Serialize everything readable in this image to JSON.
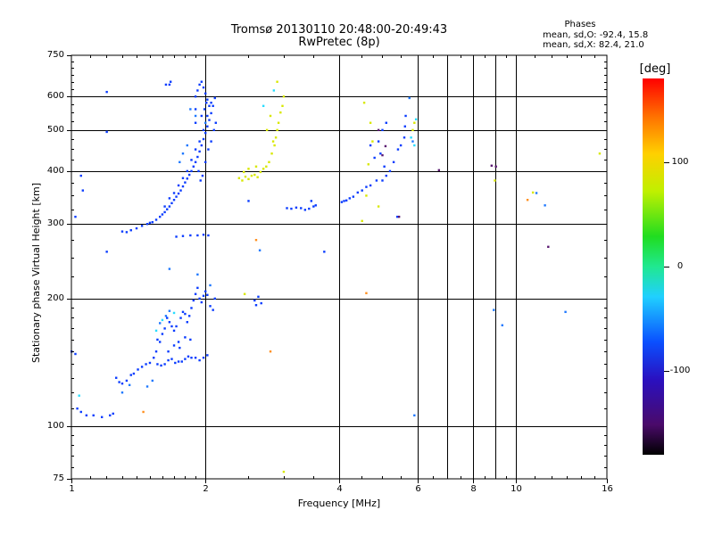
{
  "chart_data": {
    "type": "scatter",
    "title": "Tromsø 20130110 20:48:00-20:49:43",
    "subtitle": "RwPretec (8p)",
    "xlabel": "Frequency [MHz]",
    "ylabel": "Stationary phase Virtual Height [km]",
    "x_scale": "log",
    "y_scale": "log",
    "xlim": [
      1,
      16
    ],
    "ylim": [
      75,
      750
    ],
    "x_ticks": [
      1,
      2,
      4,
      6,
      8,
      10,
      16
    ],
    "x_tick_labels": [
      "1",
      "2",
      "4",
      "6",
      "8",
      "10",
      "16"
    ],
    "x_minor_grid": [
      7,
      9
    ],
    "y_ticks": [
      75,
      100,
      200,
      300,
      400,
      500,
      600,
      750
    ],
    "y_tick_labels": [
      "75",
      "100",
      "200",
      "300",
      "400",
      "500",
      "600",
      "750"
    ],
    "grid": true,
    "stats": {
      "header": "Phases",
      "line_o": "mean, sd,O: -92.4, 15.8",
      "line_x": "mean, sd,X: 82.4, 21.0"
    },
    "colorbar": {
      "label": "[deg]",
      "range": [
        -180,
        180
      ],
      "ticks": [
        100,
        0,
        -100
      ],
      "tick_labels": [
        "100",
        "0",
        "-100"
      ]
    },
    "series": [
      {
        "color": "#0a3cff",
        "phase": -110,
        "points": [
          [
            1.0,
            150
          ],
          [
            1.02,
            148
          ],
          [
            1.03,
            110
          ],
          [
            1.05,
            108
          ],
          [
            1.08,
            106
          ],
          [
            1.12,
            106
          ],
          [
            1.17,
            105
          ],
          [
            1.22,
            106
          ],
          [
            1.24,
            107
          ],
          [
            1.26,
            130
          ],
          [
            1.28,
            127
          ],
          [
            1.3,
            126
          ],
          [
            1.33,
            128
          ],
          [
            1.36,
            132
          ],
          [
            1.38,
            133
          ],
          [
            1.41,
            136
          ],
          [
            1.44,
            138
          ],
          [
            1.47,
            140
          ],
          [
            1.5,
            141
          ],
          [
            1.53,
            145
          ],
          [
            1.56,
            140
          ],
          [
            1.59,
            139
          ],
          [
            1.62,
            140
          ],
          [
            1.65,
            143
          ],
          [
            1.68,
            144
          ],
          [
            1.71,
            141
          ],
          [
            1.74,
            142
          ],
          [
            1.77,
            142
          ],
          [
            1.8,
            144
          ],
          [
            1.83,
            146
          ],
          [
            1.86,
            145
          ],
          [
            1.9,
            145
          ],
          [
            1.94,
            143
          ],
          [
            1.98,
            145
          ],
          [
            2.02,
            147
          ],
          [
            1.55,
            150
          ],
          [
            1.56,
            160
          ],
          [
            1.58,
            158
          ],
          [
            1.6,
            165
          ],
          [
            1.62,
            170
          ],
          [
            1.64,
            180
          ],
          [
            1.66,
            176
          ],
          [
            1.68,
            172
          ],
          [
            1.7,
            168
          ],
          [
            1.72,
            172
          ],
          [
            1.74,
            158
          ],
          [
            1.76,
            180
          ],
          [
            1.78,
            186
          ],
          [
            1.8,
            184
          ],
          [
            1.82,
            176
          ],
          [
            1.84,
            182
          ],
          [
            1.86,
            190
          ],
          [
            1.88,
            198
          ],
          [
            1.9,
            205
          ],
          [
            1.92,
            212
          ],
          [
            1.94,
            200
          ],
          [
            1.96,
            196
          ],
          [
            1.98,
            203
          ],
          [
            2.0,
            208
          ],
          [
            2.02,
            204
          ],
          [
            2.05,
            192
          ],
          [
            2.08,
            188
          ],
          [
            2.1,
            200
          ],
          [
            1.65,
            150
          ],
          [
            1.7,
            155
          ],
          [
            1.75,
            153
          ],
          [
            1.8,
            162
          ],
          [
            1.85,
            160
          ],
          [
            2.58,
            198
          ],
          [
            2.6,
            193
          ],
          [
            2.63,
            202
          ],
          [
            2.67,
            195
          ],
          [
            1.3,
            288
          ],
          [
            1.33,
            287
          ],
          [
            1.36,
            290
          ],
          [
            1.4,
            293
          ],
          [
            1.44,
            297
          ],
          [
            1.48,
            300
          ],
          [
            1.5,
            302
          ],
          [
            1.52,
            303
          ],
          [
            1.55,
            307
          ],
          [
            1.58,
            312
          ],
          [
            1.6,
            316
          ],
          [
            1.62,
            320
          ],
          [
            1.64,
            325
          ],
          [
            1.66,
            330
          ],
          [
            1.68,
            336
          ],
          [
            1.7,
            342
          ],
          [
            1.72,
            348
          ],
          [
            1.74,
            354
          ],
          [
            1.76,
            360
          ],
          [
            1.78,
            368
          ],
          [
            1.8,
            376
          ],
          [
            1.82,
            384
          ],
          [
            1.84,
            392
          ],
          [
            1.86,
            400
          ],
          [
            1.88,
            410
          ],
          [
            1.9,
            420
          ],
          [
            1.92,
            432
          ],
          [
            1.94,
            445
          ],
          [
            1.96,
            460
          ],
          [
            1.98,
            476
          ],
          [
            2.0,
            492
          ],
          [
            2.02,
            510
          ],
          [
            2.04,
            528
          ],
          [
            2.06,
            548
          ],
          [
            2.08,
            570
          ],
          [
            2.1,
            595
          ],
          [
            1.62,
            330
          ],
          [
            1.66,
            345
          ],
          [
            1.7,
            355
          ],
          [
            1.74,
            370
          ],
          [
            1.78,
            385
          ],
          [
            1.82,
            400
          ],
          [
            1.86,
            425
          ],
          [
            1.9,
            450
          ],
          [
            1.94,
            470
          ],
          [
            1.98,
            500
          ],
          [
            2.02,
            540
          ],
          [
            2.06,
            580
          ],
          [
            1.9,
            520
          ],
          [
            1.9,
            560
          ],
          [
            1.9,
            600
          ],
          [
            1.92,
            620
          ],
          [
            1.94,
            640
          ],
          [
            1.96,
            650
          ],
          [
            1.98,
            630
          ],
          [
            2.0,
            610
          ],
          [
            2.02,
            590
          ],
          [
            2.04,
            570
          ],
          [
            1.93,
            400
          ],
          [
            1.95,
            380
          ],
          [
            1.97,
            390
          ],
          [
            2.0,
            420
          ],
          [
            2.03,
            450
          ],
          [
            2.06,
            470
          ],
          [
            2.09,
            500
          ],
          [
            2.11,
            520
          ],
          [
            1.96,
            540
          ],
          [
            1.99,
            560
          ],
          [
            2.01,
            580
          ],
          [
            1.63,
            640
          ],
          [
            1.67,
            650
          ],
          [
            1.66,
            640
          ],
          [
            1.72,
            280
          ],
          [
            1.78,
            281
          ],
          [
            1.85,
            282
          ],
          [
            1.92,
            282
          ],
          [
            1.98,
            283
          ],
          [
            2.03,
            282
          ],
          [
            3.05,
            327
          ],
          [
            3.12,
            326
          ],
          [
            3.2,
            328
          ],
          [
            3.28,
            327
          ],
          [
            3.35,
            324
          ],
          [
            3.42,
            326
          ],
          [
            3.46,
            340
          ],
          [
            3.5,
            330
          ],
          [
            3.54,
            332
          ],
          [
            4.05,
            338
          ],
          [
            4.1,
            340
          ],
          [
            4.15,
            341
          ],
          [
            4.22,
            345
          ],
          [
            4.3,
            348
          ],
          [
            4.4,
            356
          ],
          [
            4.5,
            360
          ],
          [
            4.6,
            367
          ],
          [
            4.7,
            370
          ],
          [
            4.85,
            380
          ],
          [
            5.0,
            380
          ],
          [
            5.1,
            390
          ],
          [
            5.2,
            400
          ],
          [
            5.3,
            420
          ],
          [
            5.42,
            450
          ],
          [
            5.5,
            460
          ],
          [
            5.6,
            480
          ],
          [
            5.62,
            510
          ],
          [
            5.64,
            540
          ],
          [
            4.8,
            430
          ],
          [
            4.9,
            470
          ],
          [
            5.0,
            500
          ],
          [
            5.1,
            520
          ],
          [
            4.7,
            460
          ],
          [
            4.95,
            440
          ],
          [
            5.05,
            410
          ],
          [
            5.4,
            312
          ],
          [
            3.7,
            258
          ],
          [
            2.5,
            340
          ],
          [
            1.2,
            615
          ],
          [
            1.2,
            495
          ],
          [
            1.05,
            390
          ],
          [
            1.06,
            360
          ],
          [
            1.02,
            312
          ],
          [
            1.2,
            258
          ]
        ]
      },
      {
        "color": "#1e78ff",
        "phase": -95,
        "points": [
          [
            1.85,
            560
          ],
          [
            1.9,
            540
          ],
          [
            2.0,
            520
          ],
          [
            1.75,
            420
          ],
          [
            1.78,
            440
          ],
          [
            1.82,
            460
          ],
          [
            1.66,
            235
          ],
          [
            1.92,
            228
          ],
          [
            2.05,
            215
          ],
          [
            1.63,
            182
          ],
          [
            1.58,
            175
          ],
          [
            1.66,
            187
          ],
          [
            5.75,
            595
          ],
          [
            5.85,
            470
          ],
          [
            1.3,
            120
          ],
          [
            1.35,
            125
          ],
          [
            1.48,
            124
          ],
          [
            1.52,
            128
          ],
          [
            2.65,
            260
          ],
          [
            5.9,
            106
          ],
          [
            8.9,
            188
          ],
          [
            9.3,
            173
          ],
          [
            12.9,
            186
          ],
          [
            11.1,
            355
          ],
          [
            11.6,
            332
          ]
        ]
      },
      {
        "color": "#28ddff",
        "phase": -40,
        "points": [
          [
            1.6,
            178
          ],
          [
            1.55,
            168
          ],
          [
            1.7,
            185
          ],
          [
            5.9,
            460
          ],
          [
            2.7,
            570
          ],
          [
            2.85,
            620
          ],
          [
            5.8,
            480
          ],
          [
            5.95,
            530
          ],
          [
            1.04,
            118
          ]
        ]
      },
      {
        "color": "#d8e800",
        "phase": 110,
        "points": [
          [
            2.38,
            385
          ],
          [
            2.42,
            380
          ],
          [
            2.46,
            388
          ],
          [
            2.5,
            383
          ],
          [
            2.54,
            390
          ],
          [
            2.58,
            392
          ],
          [
            2.62,
            387
          ],
          [
            2.66,
            398
          ],
          [
            2.7,
            405
          ],
          [
            2.74,
            410
          ],
          [
            2.78,
            420
          ],
          [
            2.82,
            440
          ],
          [
            2.86,
            460
          ],
          [
            2.88,
            480
          ],
          [
            2.9,
            500
          ],
          [
            2.92,
            520
          ],
          [
            2.95,
            550
          ],
          [
            2.98,
            570
          ],
          [
            3.0,
            600
          ],
          [
            2.8,
            540
          ],
          [
            2.75,
            500
          ],
          [
            2.84,
            470
          ],
          [
            2.6,
            410
          ],
          [
            2.5,
            405
          ],
          [
            2.44,
            398
          ],
          [
            4.55,
            580
          ],
          [
            4.7,
            520
          ],
          [
            4.9,
            330
          ],
          [
            4.5,
            305
          ],
          [
            4.6,
            350
          ],
          [
            4.65,
            415
          ],
          [
            4.75,
            470
          ],
          [
            5.85,
            500
          ],
          [
            5.9,
            520
          ],
          [
            3.0,
            78
          ],
          [
            2.9,
            650
          ],
          [
            8.95,
            380
          ],
          [
            10.9,
            356
          ],
          [
            15.4,
            440
          ],
          [
            2.45,
            205
          ]
        ]
      },
      {
        "color": "#ff9020",
        "phase": 150,
        "points": [
          [
            4.6,
            206
          ],
          [
            2.8,
            150
          ],
          [
            1.45,
            108
          ],
          [
            2.6,
            275
          ],
          [
            10.6,
            342
          ]
        ]
      },
      {
        "color": "#5a1870",
        "phase": -160,
        "points": [
          [
            5.45,
            312
          ],
          [
            5.0,
            436
          ],
          [
            5.08,
            458
          ],
          [
            6.7,
            402
          ],
          [
            8.8,
            412
          ],
          [
            9.0,
            410
          ],
          [
            4.9,
            500
          ],
          [
            11.8,
            265
          ]
        ]
      }
    ]
  }
}
